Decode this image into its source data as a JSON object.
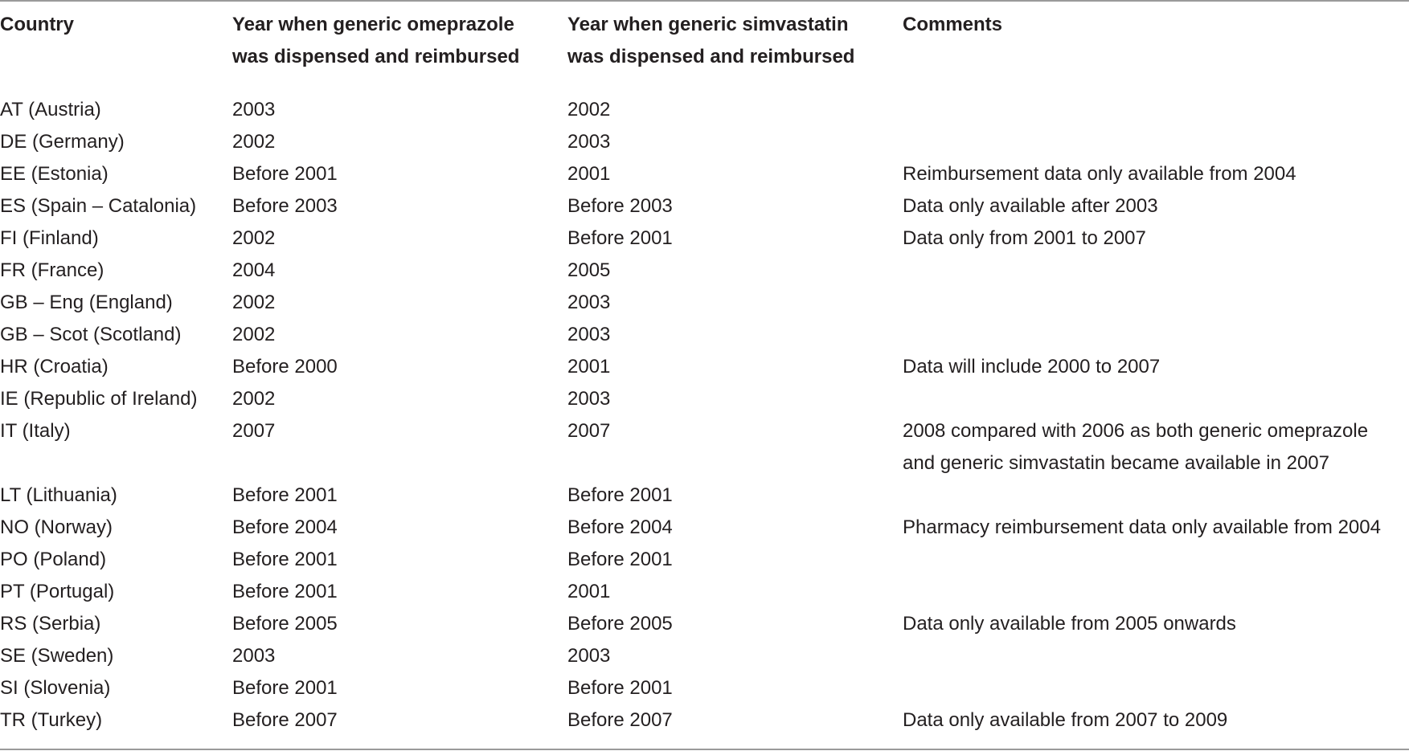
{
  "table": {
    "headers": [
      "Country",
      "Year when generic omeprazole was dispensed and reimbursed",
      "Year when generic simvastatin was dispensed and reimbursed",
      "Comments"
    ],
    "header_lines": [
      [
        "Country"
      ],
      [
        "Year when generic omeprazole",
        "was dispensed and reimbursed"
      ],
      [
        "Year when generic simvastatin",
        "was dispensed and reimbursed"
      ],
      [
        "Comments"
      ]
    ],
    "rows": [
      {
        "country": "AT (Austria)",
        "omeprazole": "2003",
        "simvastatin": "2002",
        "comments": []
      },
      {
        "country": "DE (Germany)",
        "omeprazole": "2002",
        "simvastatin": "2003",
        "comments": []
      },
      {
        "country": "EE (Estonia)",
        "omeprazole": "Before 2001",
        "simvastatin": "2001",
        "comments": [
          "Reimbursement data only available from 2004"
        ]
      },
      {
        "country": "ES (Spain – Catalonia)",
        "omeprazole": "Before 2003",
        "simvastatin": "Before 2003",
        "comments": [
          "Data only available after 2003"
        ]
      },
      {
        "country": "FI (Finland)",
        "omeprazole": "2002",
        "simvastatin": "Before 2001",
        "comments": [
          "Data only from 2001 to 2007"
        ]
      },
      {
        "country": "FR (France)",
        "omeprazole": "2004",
        "simvastatin": "2005",
        "comments": []
      },
      {
        "country": "GB – Eng (England)",
        "omeprazole": "2002",
        "simvastatin": "2003",
        "comments": []
      },
      {
        "country": "GB – Scot (Scotland)",
        "omeprazole": "2002",
        "simvastatin": "2003",
        "comments": []
      },
      {
        "country": "HR (Croatia)",
        "omeprazole": "Before 2000",
        "simvastatin": "2001",
        "comments": [
          "Data will include 2000 to 2007"
        ]
      },
      {
        "country": "IE (Republic of Ireland)",
        "omeprazole": "2002",
        "simvastatin": "2003",
        "comments": []
      },
      {
        "country": "IT (Italy)",
        "omeprazole": "2007",
        "simvastatin": "2007",
        "comments": [
          "2008 compared with 2006 as both generic omeprazole",
          "and generic simvastatin became available in 2007"
        ]
      },
      {
        "country": "LT (Lithuania)",
        "omeprazole": "Before 2001",
        "simvastatin": "Before 2001",
        "comments": []
      },
      {
        "country": "NO (Norway)",
        "omeprazole": "Before 2004",
        "simvastatin": "Before 2004",
        "comments": [
          "Pharmacy reimbursement data only available from 2004"
        ]
      },
      {
        "country": "PO (Poland)",
        "omeprazole": "Before 2001",
        "simvastatin": "Before 2001",
        "comments": []
      },
      {
        "country": "PT (Portugal)",
        "omeprazole": "Before 2001",
        "simvastatin": "2001",
        "comments": []
      },
      {
        "country": "RS (Serbia)",
        "omeprazole": "Before 2005",
        "simvastatin": "Before 2005",
        "comments": [
          "Data only available from 2005 onwards"
        ]
      },
      {
        "country": "SE (Sweden)",
        "omeprazole": "2003",
        "simvastatin": "2003",
        "comments": []
      },
      {
        "country": "SI (Slovenia)",
        "omeprazole": "Before 2001",
        "simvastatin": "Before 2001",
        "comments": []
      },
      {
        "country": "TR (Turkey)",
        "omeprazole": "Before 2007",
        "simvastatin": "Before 2007",
        "comments": [
          "Data only available from 2007 to 2009"
        ]
      }
    ]
  }
}
